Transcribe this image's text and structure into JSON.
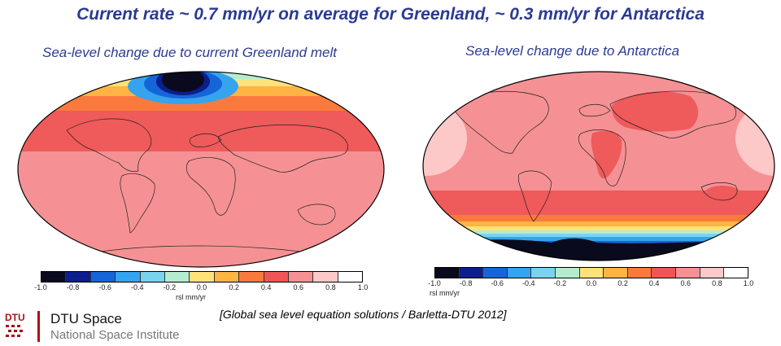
{
  "headline": "Current rate ~ 0.7 mm/yr on average for Greenland, ~ 0.3 mm/yr for Antarctica",
  "panels": [
    {
      "title": "Sea-level change due to current Greenland melt",
      "colorbar": {
        "ticks": [
          "-1.0",
          "-0.8",
          "-0.6",
          "-0.4",
          "-0.2",
          "0.0",
          "0.2",
          "0.4",
          "0.6",
          "0.8",
          "1.0"
        ],
        "unit": "rsl mm/yr"
      }
    },
    {
      "title": "Sea-level change due to Antarctica",
      "colorbar": {
        "ticks": [
          "-1.0",
          "-0.8",
          "-0.6",
          "-0.4",
          "-0.2",
          "0.0",
          "0.2",
          "0.4",
          "0.6",
          "0.8",
          "1.0"
        ],
        "unit": "rsl mm/yr"
      }
    }
  ],
  "colorbar_palette": [
    "#0a0a1e",
    "#0b1e8c",
    "#1565d8",
    "#35a3ee",
    "#79d3ee",
    "#b4ecd0",
    "#ffe27a",
    "#ffb444",
    "#fa7a3e",
    "#f05555",
    "#f59194",
    "#fcc8c8",
    "#ffffff"
  ],
  "citation": "[Global sea level equation solutions / Barletta-DTU 2012]",
  "logo": {
    "mark_text": "DTU",
    "org_name": "DTU Space",
    "org_subtitle": "National Space Institute",
    "accent_color": "#a4161a"
  }
}
